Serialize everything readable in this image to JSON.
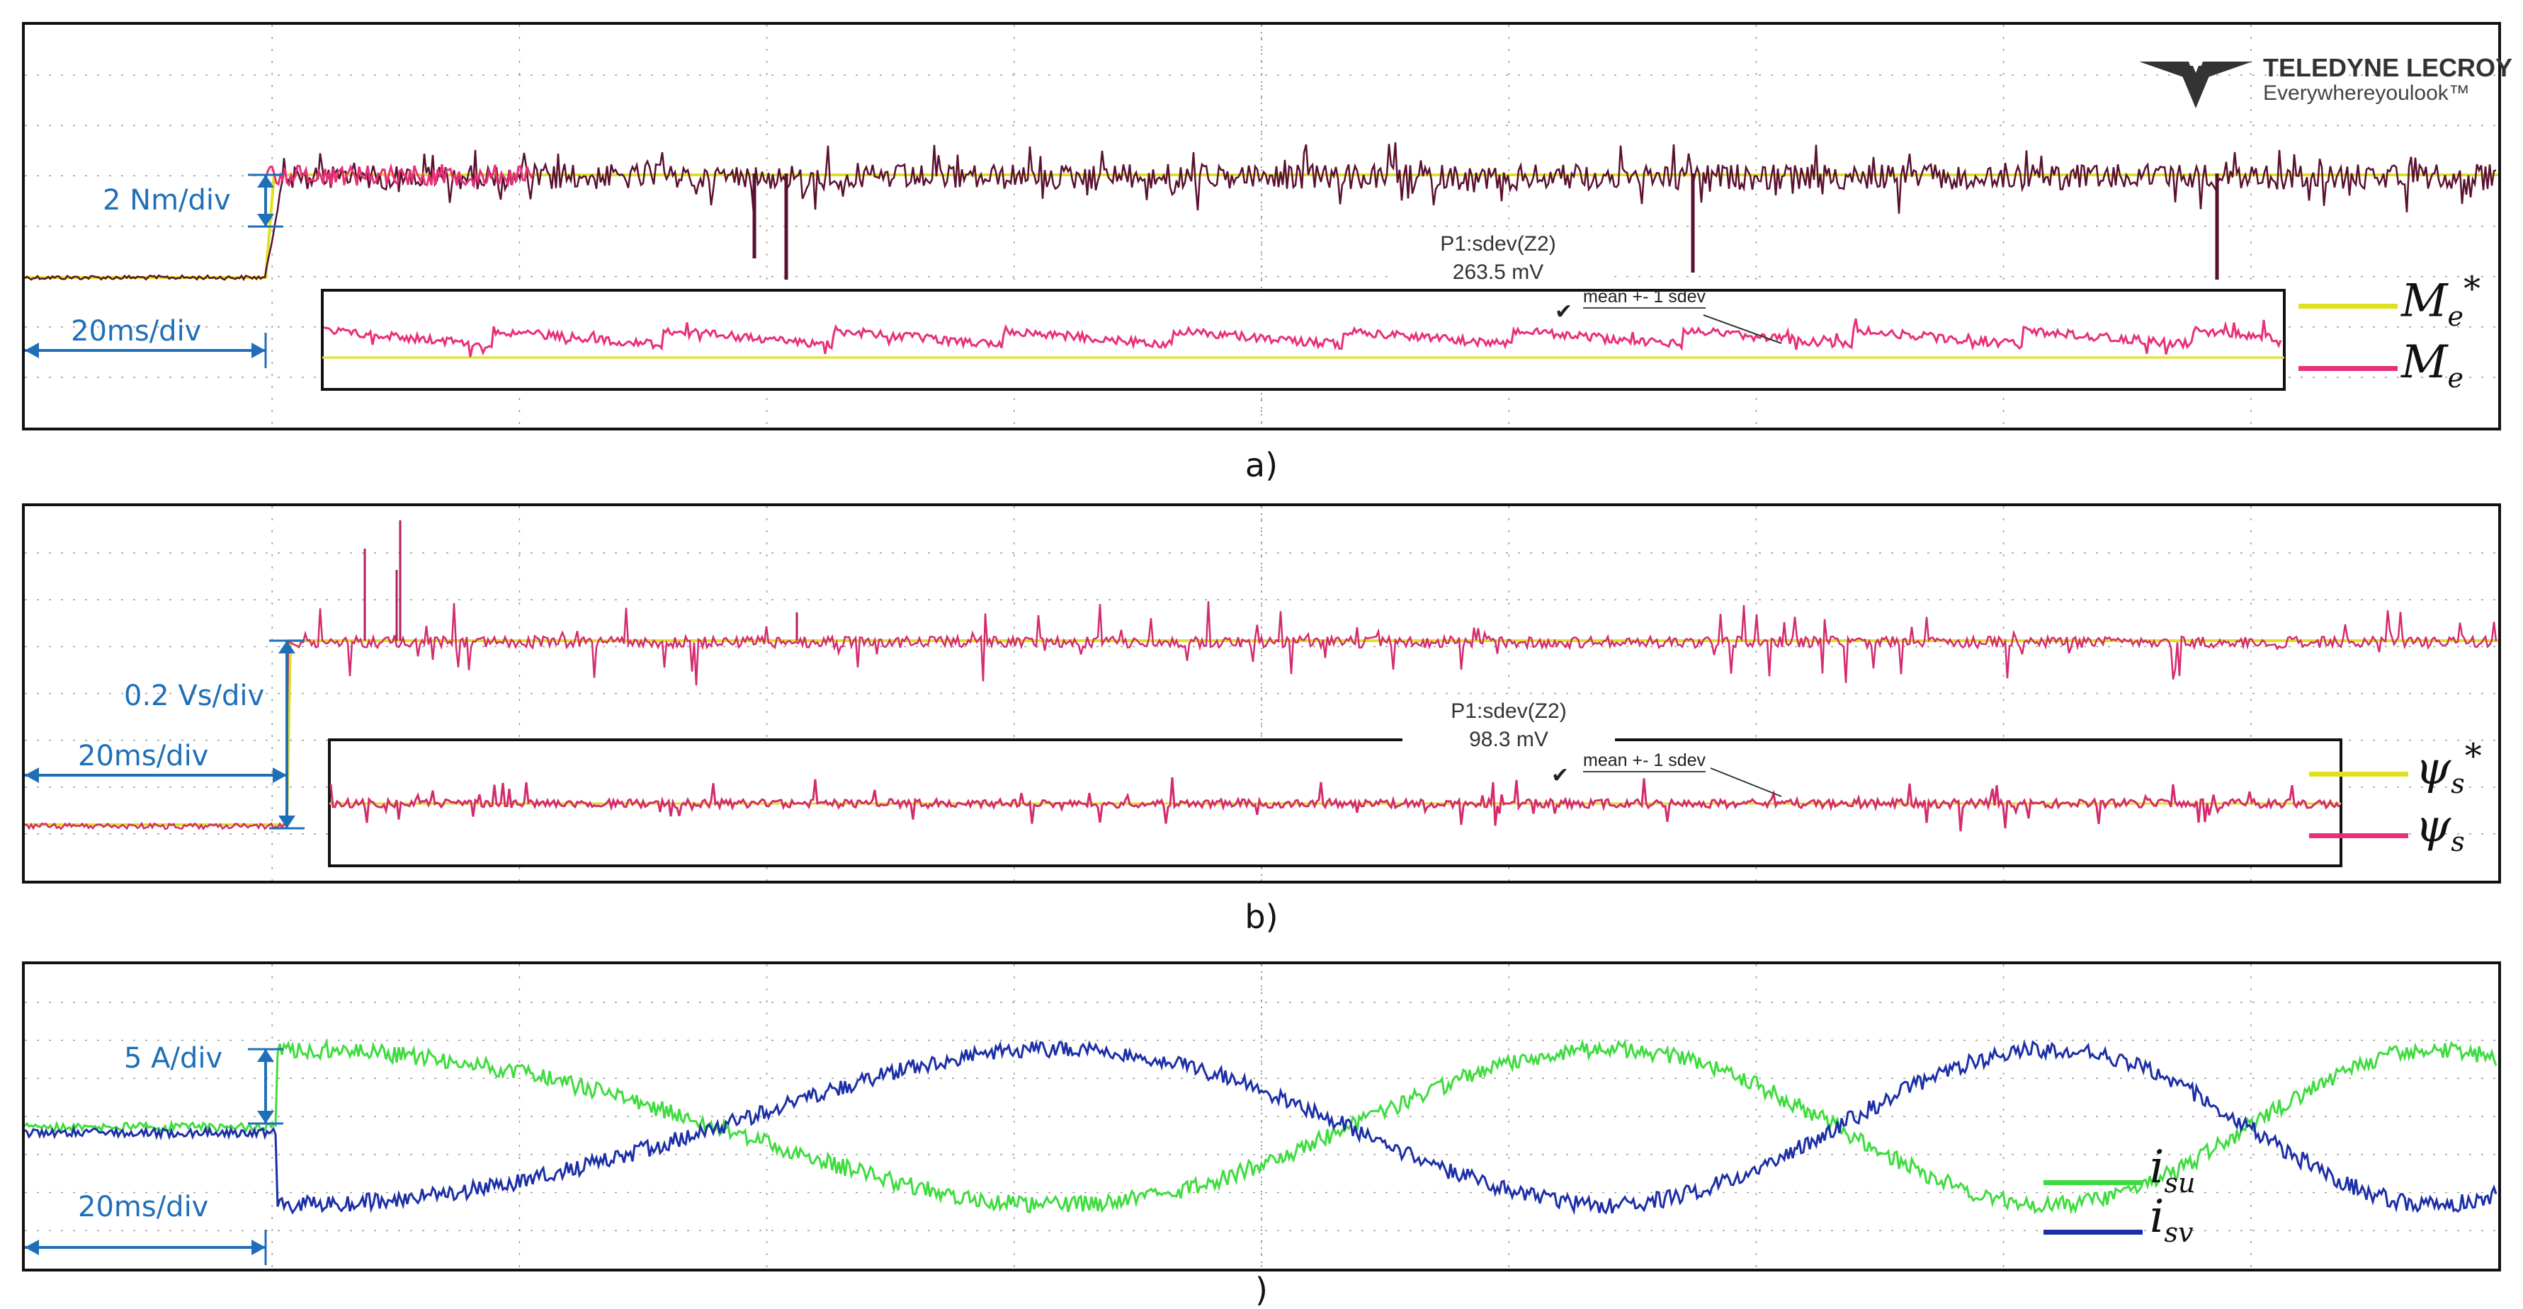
{
  "logo": {
    "name": "TELEDYNE LECROY",
    "tagline": "Everywhereyoulook™"
  },
  "colors": {
    "ref_yellow": "#e0e020",
    "meas_pink": "#e8307a",
    "dark_maroon": "#5a1030",
    "green": "#3fdc3f",
    "blue": "#1c2fa6",
    "scale_blue": "#1f6fb8",
    "grid": "#9a9a9a"
  },
  "chart_data": [
    {
      "type": "line",
      "panel_caption": "a)",
      "time_scale": "20ms/div",
      "amplitude_scale": "2 Nm/div",
      "series": [
        {
          "name": "M_e*",
          "color": "#e0e020"
        },
        {
          "name": "M_e",
          "color": "#e8307a"
        }
      ],
      "legend": [
        {
          "base": "M",
          "sub": "e",
          "sup": "*"
        },
        {
          "base": "M",
          "sub": "e",
          "sup": ""
        }
      ],
      "measurement": {
        "label": "P1:sdev(Z2)",
        "value": "263.5 mV",
        "note": "mean +- 1 sdev"
      },
      "grid": true,
      "divisions": {
        "x": 10,
        "y": 8
      }
    },
    {
      "type": "line",
      "panel_caption": "b)",
      "time_scale": "20ms/div",
      "amplitude_scale": "0.2 Vs/div",
      "series": [
        {
          "name": "ψs*",
          "color": "#e0e020"
        },
        {
          "name": "ψs",
          "color": "#e8307a"
        }
      ],
      "legend": [
        {
          "base": "ψ",
          "sub": "s",
          "sup": "*"
        },
        {
          "base": "ψ",
          "sub": "s",
          "sup": ""
        }
      ],
      "measurement": {
        "label": "P1:sdev(Z2)",
        "value": "98.3 mV",
        "note": "mean +- 1 sdev"
      },
      "grid": true,
      "divisions": {
        "x": 10,
        "y": 8
      }
    },
    {
      "type": "line",
      "panel_caption": ")",
      "time_scale": "20ms/div",
      "amplitude_scale": "5 A/div",
      "series": [
        {
          "name": "i_su",
          "color": "#3fdc3f"
        },
        {
          "name": "i_sv",
          "color": "#1c2fa6"
        }
      ],
      "legend": [
        {
          "base": "i",
          "sub": "su",
          "sup": ""
        },
        {
          "base": "i",
          "sub": "sv",
          "sup": ""
        }
      ],
      "grid": true,
      "divisions": {
        "x": 10,
        "y": 8
      }
    }
  ]
}
